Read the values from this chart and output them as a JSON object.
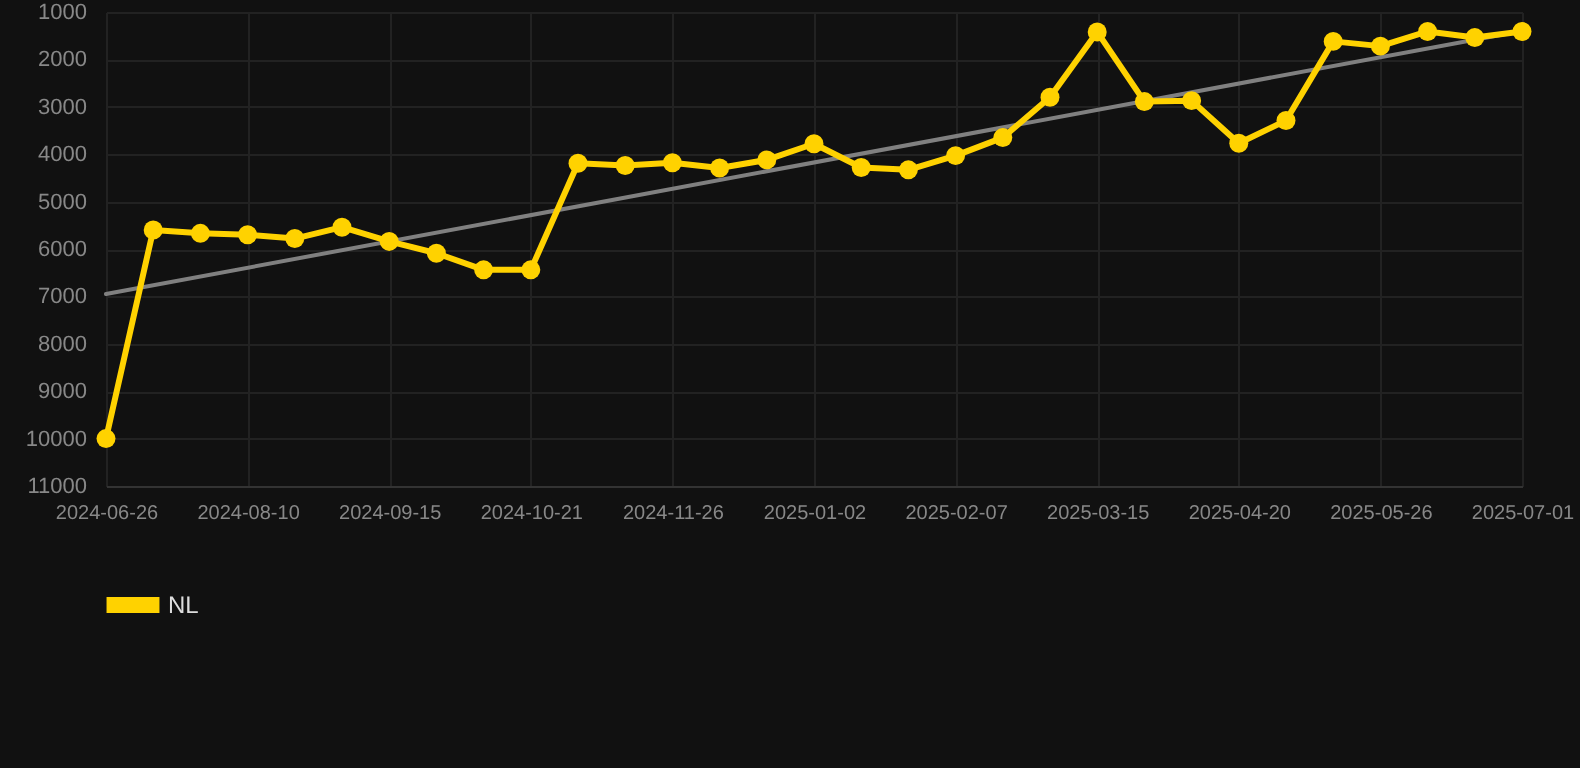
{
  "chart_data": {
    "type": "line",
    "categories": [
      "2024-06-26",
      null,
      null,
      "2024-08-10",
      null,
      null,
      "2024-09-15",
      null,
      null,
      "2024-10-21",
      null,
      null,
      "2024-11-26",
      null,
      null,
      "2025-01-02",
      null,
      null,
      "2025-02-07",
      null,
      null,
      "2025-03-15",
      null,
      null,
      "2025-04-20",
      null,
      null,
      "2025-05-26",
      null,
      null,
      "2025-07-01"
    ],
    "series": [
      {
        "name": "NL",
        "color": "#ffd200",
        "marker": "circle",
        "values": [
          10000,
          5600,
          5670,
          5700,
          5780,
          5540,
          5840,
          6090,
          6440,
          6440,
          4190,
          4240,
          4180,
          4290,
          4120,
          3780,
          4280,
          4330,
          4030,
          3650,
          2800,
          1420,
          2890,
          2870,
          3770,
          3290,
          1620,
          1720,
          1410,
          1540,
          1410
        ]
      },
      {
        "type": "line",
        "color": "#808080",
        "marker": "none",
        "values": [
          6950,
          null,
          null,
          null,
          null,
          null,
          null,
          null,
          null,
          null,
          null,
          null,
          null,
          null,
          null,
          null,
          null,
          null,
          null,
          null,
          null,
          null,
          null,
          null,
          null,
          null,
          null,
          null,
          null,
          null,
          1400
        ]
      }
    ],
    "ylim": [
      11000,
      1000
    ],
    "yticks": [
      1000,
      2000,
      3000,
      4000,
      5000,
      6000,
      7000,
      8000,
      9000,
      10000,
      11000
    ],
    "grid": true,
    "legend": "bottom",
    "line_style": "solid"
  }
}
